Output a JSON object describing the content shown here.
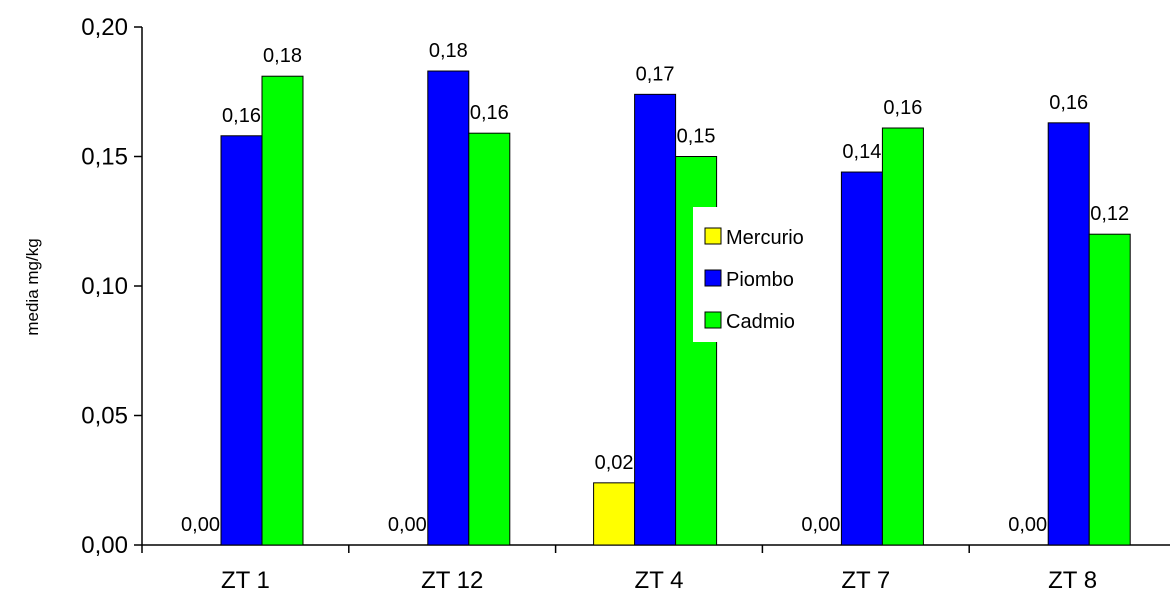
{
  "chart_data": {
    "type": "bar",
    "categories": [
      "ZT 1",
      "ZT 12",
      "ZT 4",
      "ZT 7",
      "ZT 8"
    ],
    "series": [
      {
        "name": "Mercurio",
        "values": [
          0.0,
          0.0,
          0.024,
          0.0,
          0.0
        ],
        "labels": [
          "0,00",
          "0,00",
          "0,02",
          "0,00",
          "0,00"
        ],
        "color": "#FFFF00"
      },
      {
        "name": "Piombo",
        "values": [
          0.158,
          0.183,
          0.174,
          0.144,
          0.163
        ],
        "labels": [
          "0,16",
          "0,18",
          "0,17",
          "0,14",
          "0,16"
        ],
        "color": "#0000FF"
      },
      {
        "name": "Cadmio",
        "values": [
          0.181,
          0.159,
          0.15,
          0.161,
          0.12
        ],
        "labels": [
          "0,18",
          "0,16",
          "0,15",
          "0,16",
          "0,12"
        ],
        "color": "#00FF00"
      }
    ],
    "title": "",
    "xlabel": "",
    "ylabel": "media mg/kg",
    "ylim": [
      0,
      0.2
    ],
    "yticks": [
      0,
      0.05,
      0.1,
      0.15,
      0.2
    ],
    "ytick_labels": [
      "0,00",
      "0,05",
      "0,10",
      "0,15",
      "0,20"
    ],
    "grid": false,
    "legend": "center"
  }
}
